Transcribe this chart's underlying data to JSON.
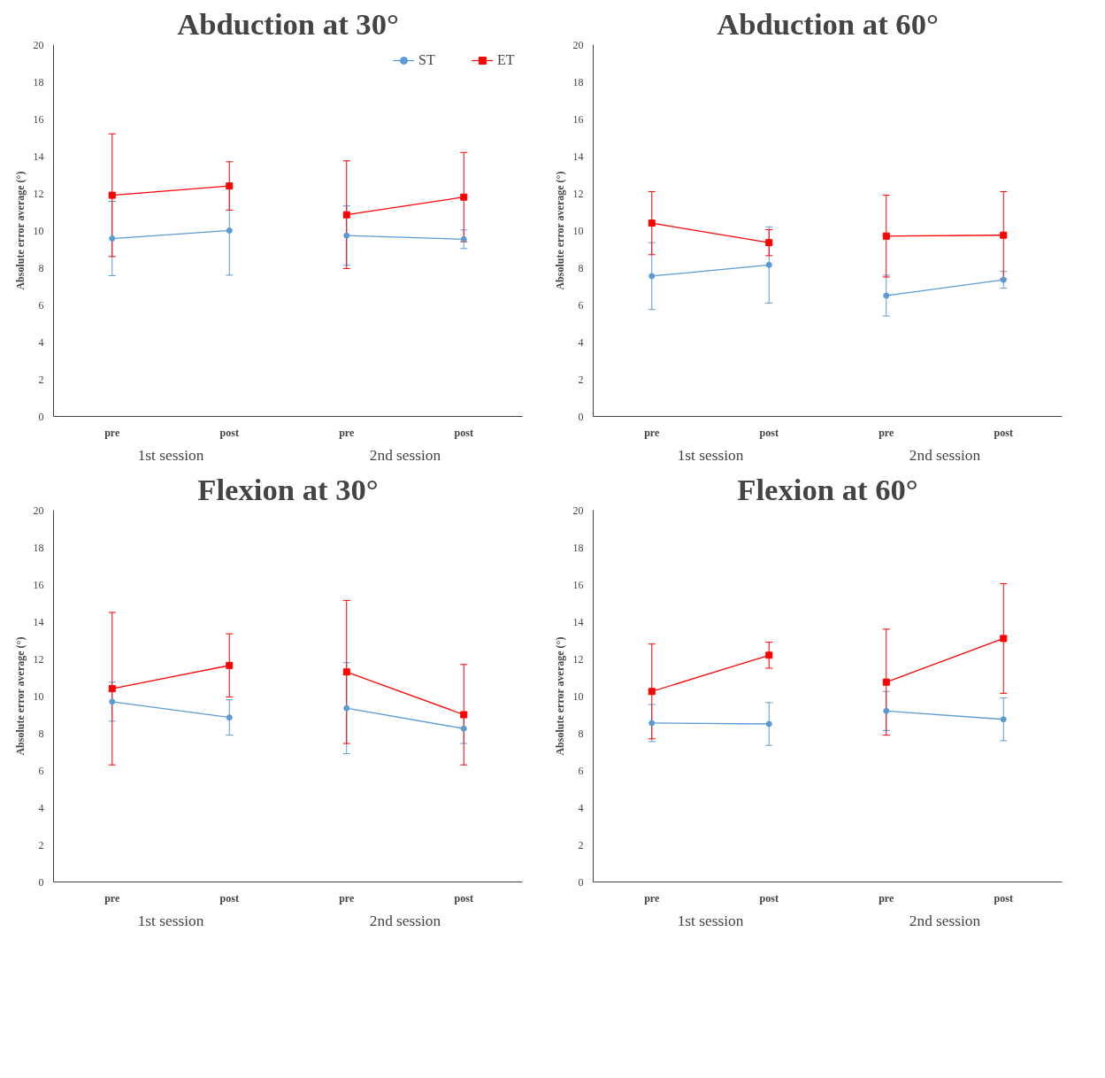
{
  "chart_data": [
    {
      "type": "line",
      "title": "Abduction at 30°",
      "ylabel": "Absolute error average (°)",
      "categories": [
        "pre",
        "post",
        "pre",
        "post"
      ],
      "annotations": [
        "1st session",
        "2nd session"
      ],
      "ylim": [
        0,
        20
      ],
      "yticks": [
        0,
        2,
        4,
        6,
        8,
        10,
        12,
        14,
        16,
        18,
        20
      ],
      "grid": false,
      "legend": "top right",
      "series": [
        {
          "name": "ST",
          "color": "#5b9bd5",
          "marker": "circle",
          "values": [
            9.57,
            10.0,
            9.73,
            9.53
          ],
          "errors": [
            2.0,
            2.4,
            1.6,
            0.5
          ]
        },
        {
          "name": "ET",
          "color": "#ff0000",
          "marker": "square",
          "values": [
            11.9,
            12.4,
            10.85,
            11.8
          ],
          "errors": [
            3.3,
            1.3,
            2.9,
            2.4
          ]
        }
      ]
    },
    {
      "type": "line",
      "title": "Abduction at 60°",
      "ylabel": "Absolute error average (°)",
      "categories": [
        "pre",
        "post",
        "pre",
        "post"
      ],
      "annotations": [
        "1st session",
        "2nd session"
      ],
      "ylim": [
        0,
        20
      ],
      "yticks": [
        0,
        2,
        4,
        6,
        8,
        10,
        12,
        14,
        16,
        18,
        20
      ],
      "grid": false,
      "series": [
        {
          "color": "#5b9bd5",
          "marker": "circle",
          "values": [
            7.55,
            8.15,
            6.5,
            7.35
          ],
          "errors": [
            1.8,
            2.05,
            1.1,
            0.45
          ]
        },
        {
          "color": "#ff0000",
          "marker": "square",
          "values": [
            10.4,
            9.35,
            9.7,
            9.75
          ],
          "errors": [
            1.7,
            0.7,
            2.2,
            2.35
          ]
        }
      ]
    },
    {
      "type": "line",
      "title": "Flexion at 30°",
      "ylabel": "Absolute error average (°)",
      "categories": [
        "pre",
        "post",
        "pre",
        "post"
      ],
      "annotations": [
        "1st session",
        "2nd session"
      ],
      "ylim": [
        0,
        20
      ],
      "yticks": [
        0,
        2,
        4,
        6,
        8,
        10,
        12,
        14,
        16,
        18,
        20
      ],
      "grid": false,
      "series": [
        {
          "color": "#5b9bd5",
          "marker": "circle",
          "values": [
            9.7,
            8.85,
            9.35,
            8.25
          ],
          "errors": [
            1.05,
            0.95,
            2.45,
            0.8
          ]
        },
        {
          "color": "#ff0000",
          "marker": "square",
          "values": [
            10.4,
            11.65,
            11.3,
            9.0
          ],
          "errors": [
            4.1,
            1.7,
            3.85,
            2.7
          ]
        }
      ]
    },
    {
      "type": "line",
      "title": "Flexion at 60°",
      "ylabel": "Absolute error average (°)",
      "categories": [
        "pre",
        "post",
        "pre",
        "post"
      ],
      "annotations": [
        "1st session",
        "2nd session"
      ],
      "ylim": [
        0,
        20
      ],
      "yticks": [
        0,
        2,
        4,
        6,
        8,
        10,
        12,
        14,
        16,
        18,
        20
      ],
      "grid": false,
      "series": [
        {
          "color": "#5b9bd5",
          "marker": "circle",
          "values": [
            8.55,
            8.5,
            9.2,
            8.75
          ],
          "errors": [
            1.0,
            1.15,
            1.05,
            1.15
          ]
        },
        {
          "color": "#ff0000",
          "marker": "square",
          "values": [
            10.25,
            12.2,
            10.75,
            13.1
          ],
          "errors": [
            2.55,
            0.7,
            2.85,
            2.95
          ]
        }
      ]
    }
  ]
}
